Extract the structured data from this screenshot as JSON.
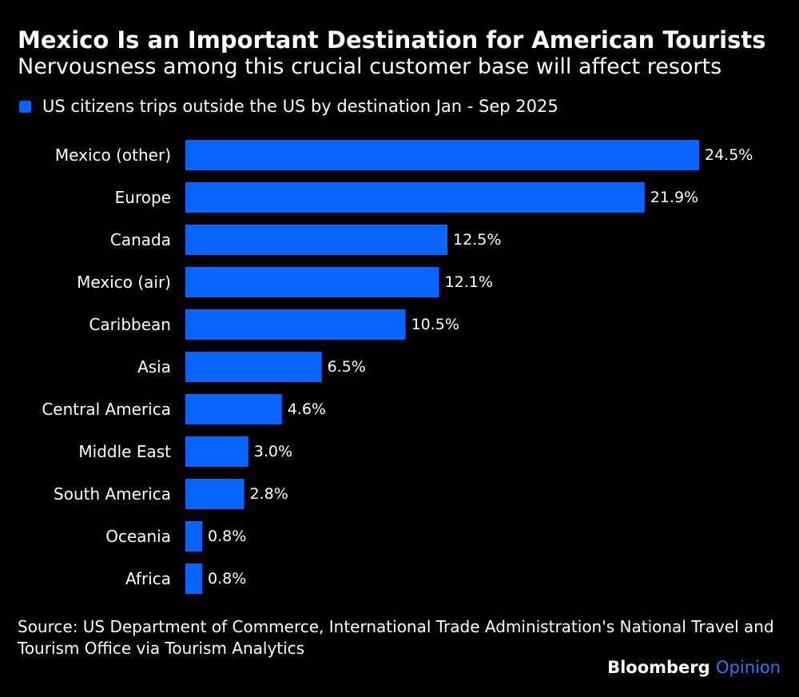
{
  "header": {
    "title": "Mexico Is an Important Destination for American Tourists",
    "subtitle": "Nervousness among this crucial customer base will affect resorts"
  },
  "legend": {
    "label": "US citizens trips outside the US by destination Jan - Sep 2025",
    "color": "#0a64ff"
  },
  "chart_data": {
    "type": "bar",
    "orientation": "horizontal",
    "categories": [
      "Mexico (other)",
      "Europe",
      "Canada",
      "Mexico (air)",
      "Caribbean",
      "Asia",
      "Central America",
      "Middle East",
      "South America",
      "Oceania",
      "Africa"
    ],
    "values": [
      24.5,
      21.9,
      12.5,
      12.1,
      10.5,
      6.5,
      4.6,
      3.0,
      2.8,
      0.8,
      0.8
    ],
    "data_labels": [
      "24.5%",
      "21.9%",
      "12.5%",
      "12.1%",
      "10.5%",
      "6.5%",
      "4.6%",
      "3.0%",
      "2.8%",
      "0.8%",
      "0.8%"
    ],
    "series_name": "US citizens trips outside the US by destination Jan - Sep 2025",
    "unit": "%",
    "xlim": [
      0,
      24.5
    ],
    "grid": false,
    "legend_position": "top-left",
    "bar_color": "#0a64ff"
  },
  "footer": {
    "source": "Source: US Department of Commerce, International Trade Administration's National Travel and Tourism Office via Tourism Analytics",
    "brand_main": "Bloomberg",
    "brand_sub": "Opinion",
    "brand_sub_color": "#1f7dff"
  }
}
